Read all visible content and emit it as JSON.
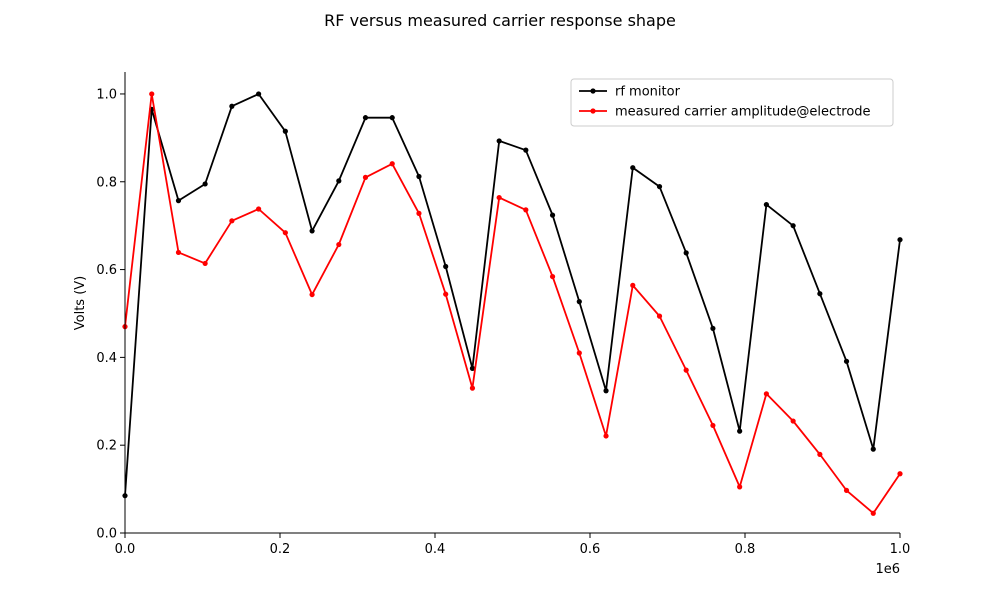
{
  "chart_data": {
    "type": "line",
    "title": "RF versus measured carrier response shape",
    "xlabel": "",
    "ylabel": "Volts (V)",
    "x_offset_text": "1e6",
    "xlim": [
      0,
      1.0
    ],
    "ylim": [
      0,
      1.05
    ],
    "xticks": [
      "0.0",
      "0.2",
      "0.4",
      "0.6",
      "0.8",
      "1.0"
    ],
    "yticks": [
      "0.0",
      "0.2",
      "0.4",
      "0.6",
      "0.8",
      "1.0"
    ],
    "grid": false,
    "legend_position": "top-right",
    "x": [
      0.0,
      0.0345,
      0.069,
      0.1034,
      0.1379,
      0.1724,
      0.2069,
      0.2414,
      0.2759,
      0.3103,
      0.3448,
      0.3793,
      0.4138,
      0.4483,
      0.4828,
      0.5172,
      0.5517,
      0.5862,
      0.6207,
      0.6552,
      0.6897,
      0.7241,
      0.7586,
      0.7931,
      0.8276,
      0.8621,
      0.8966,
      0.931,
      0.9655,
      1.0
    ],
    "series": [
      {
        "name": "rf monitor",
        "color": "#000000",
        "values": [
          0.085,
          0.965,
          0.757,
          0.795,
          0.972,
          1.0,
          0.915,
          0.688,
          0.802,
          0.946,
          0.946,
          0.812,
          0.607,
          0.375,
          0.893,
          0.872,
          0.724,
          0.527,
          0.324,
          0.832,
          0.789,
          0.638,
          0.466,
          0.232,
          0.748,
          0.7,
          0.545,
          0.391,
          0.191,
          0.668
        ]
      },
      {
        "name": "measured carrier amplitude@electrode",
        "color": "#ff0000",
        "values": [
          0.47,
          1.0,
          0.639,
          0.614,
          0.711,
          0.738,
          0.684,
          0.543,
          0.657,
          0.81,
          0.841,
          0.728,
          0.544,
          0.33,
          0.764,
          0.736,
          0.584,
          0.41,
          0.221,
          0.564,
          0.494,
          0.371,
          0.245,
          0.105,
          0.317,
          0.255,
          0.179,
          0.097,
          0.045,
          0.135
        ]
      }
    ]
  }
}
